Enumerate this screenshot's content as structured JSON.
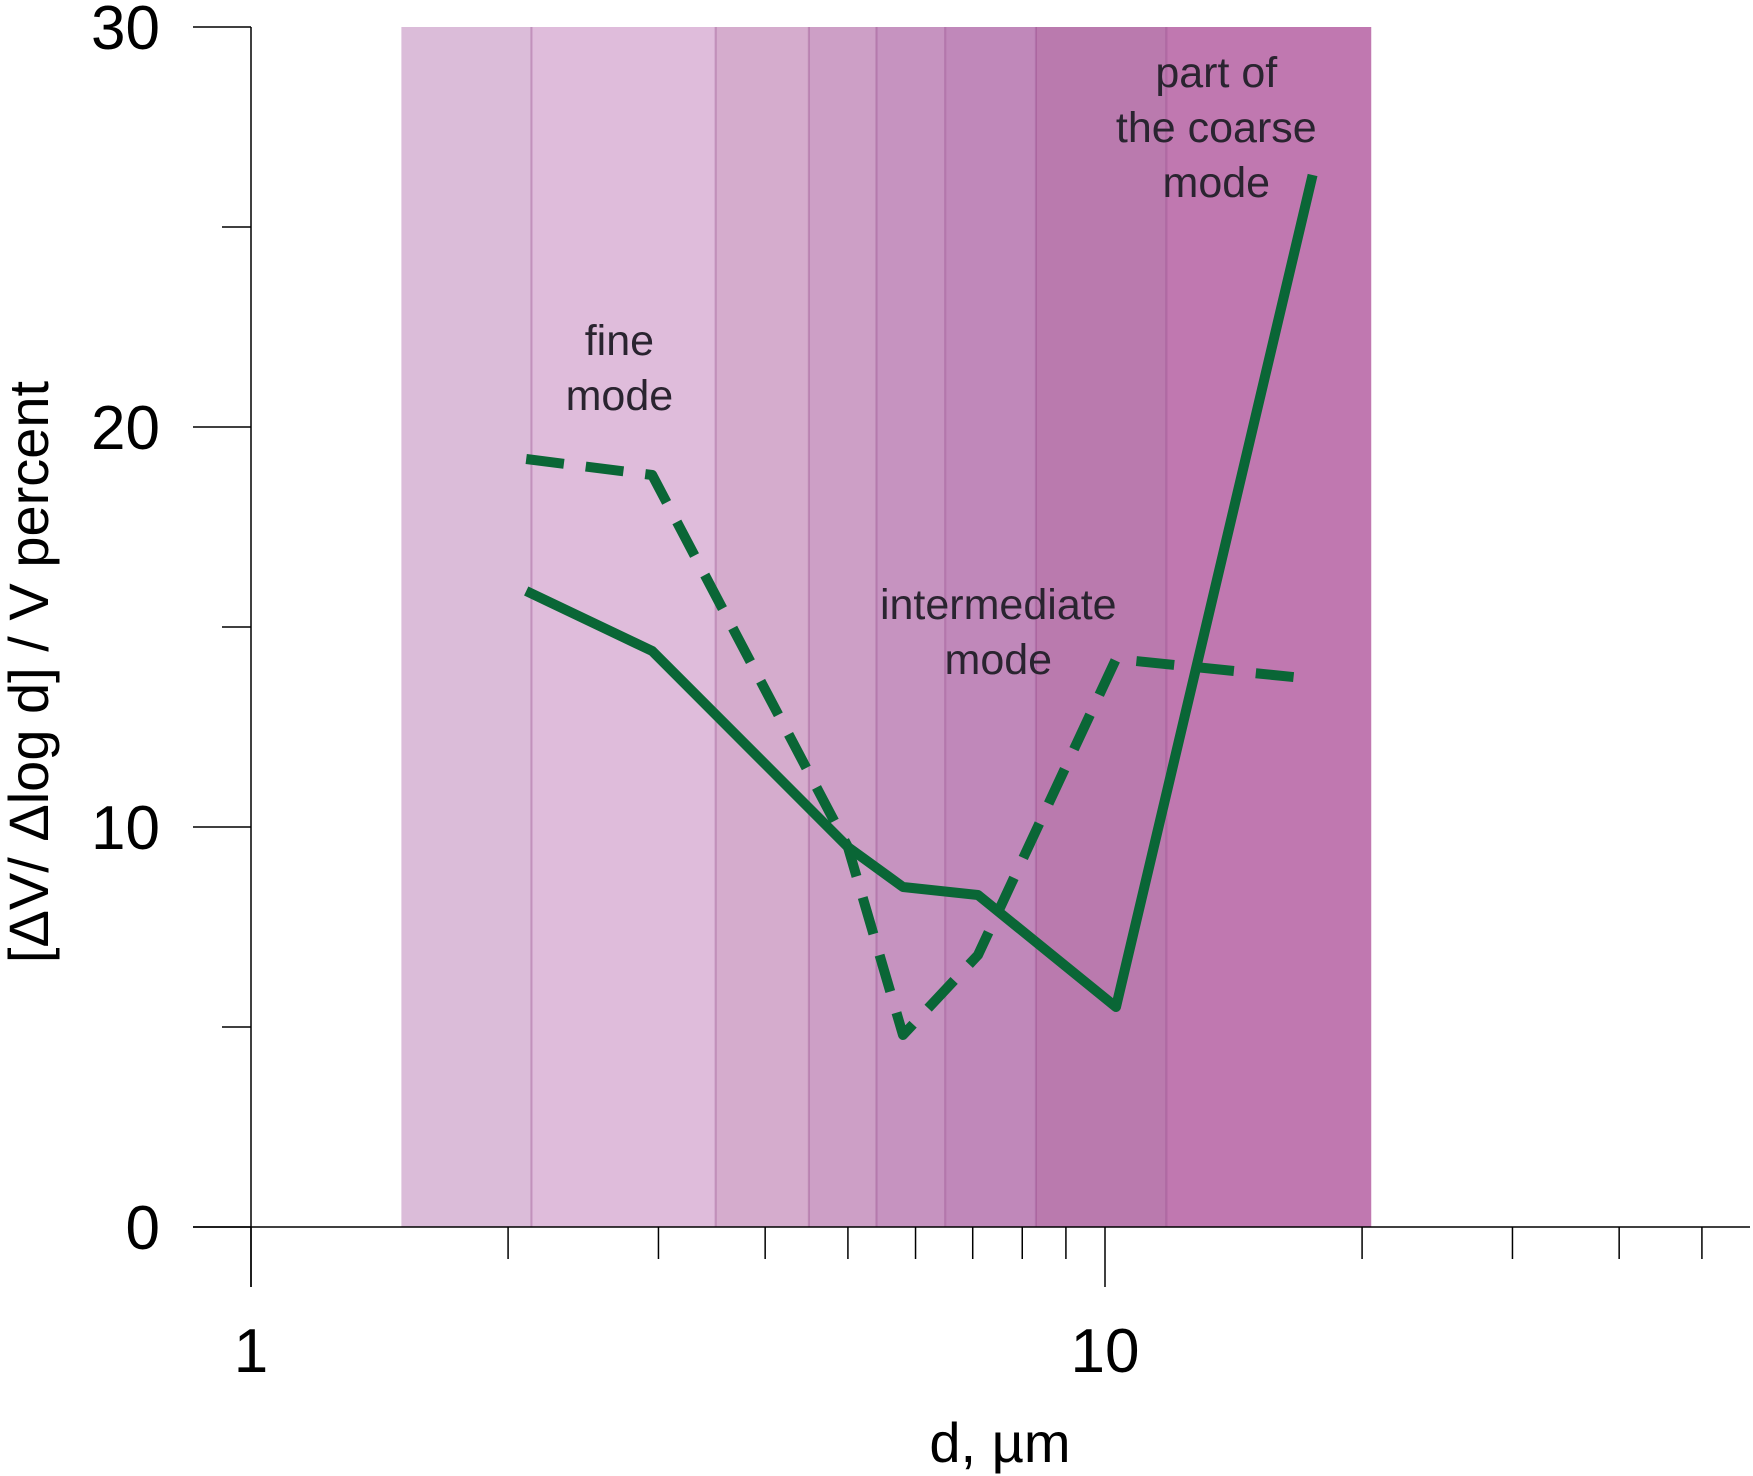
{
  "chart_data": {
    "type": "line",
    "xlabel": "d, µm",
    "ylabel": "[ΔV/ Δlog d] / V percent",
    "x_scale": "log",
    "xlim": [
      0.93,
      60
    ],
    "ylim": [
      0,
      30
    ],
    "x_ticks": [
      {
        "value": 1,
        "label": "1"
      },
      {
        "value": 10,
        "label": "10"
      }
    ],
    "y_ticks": [
      {
        "value": 0,
        "label": "0"
      },
      {
        "value": 10,
        "label": "10"
      },
      {
        "value": 20,
        "label": "20"
      },
      {
        "value": 30,
        "label": "30"
      }
    ],
    "y_minor_ticks": [
      5,
      15,
      25
    ],
    "x_minor_ticks": [
      2,
      3,
      4,
      5,
      6,
      7,
      8,
      9,
      20,
      30,
      40,
      50,
      60
    ],
    "grid": false,
    "legend": "none",
    "bands": [
      {
        "x0": 1.5,
        "x1": 2.13,
        "color": "#dbbcd9"
      },
      {
        "x0": 2.13,
        "x1": 3.5,
        "color": "#dfbcdb"
      },
      {
        "x0": 3.5,
        "x1": 4.5,
        "color": "#d5accd"
      },
      {
        "x0": 4.5,
        "x1": 5.4,
        "color": "#cd9fc6"
      },
      {
        "x0": 5.4,
        "x1": 6.5,
        "color": "#c693c0"
      },
      {
        "x0": 6.5,
        "x1": 8.3,
        "color": "#c088ba"
      },
      {
        "x0": 8.3,
        "x1": 11.8,
        "color": "#ba7aae"
      },
      {
        "x0": 11.8,
        "x1": 20.5,
        "color": "#c078b0"
      }
    ],
    "series": [
      {
        "style": "solid",
        "color": "#0a6636",
        "x": [
          2.1,
          2.95,
          5.0,
          5.8,
          7.1,
          10.3,
          17.5
        ],
        "y": [
          15.9,
          14.4,
          9.5,
          8.5,
          8.3,
          5.5,
          26.3
        ]
      },
      {
        "style": "dashed",
        "color": "#0a6636",
        "x": [
          2.1,
          2.95,
          5.0,
          5.8,
          7.1,
          10.3,
          17.5
        ],
        "y": [
          19.2,
          18.8,
          9.5,
          4.8,
          6.8,
          14.2,
          13.7
        ]
      }
    ],
    "annotations": [
      {
        "lines": [
          "fine",
          "mode"
        ],
        "x": 2.7,
        "y": 21.8
      },
      {
        "lines": [
          "intermediate",
          "mode"
        ],
        "x": 7.5,
        "y": 15.2
      },
      {
        "lines": [
          "part of",
          "the coarse",
          "mode"
        ],
        "x": 13.5,
        "y": 28.5
      }
    ]
  }
}
